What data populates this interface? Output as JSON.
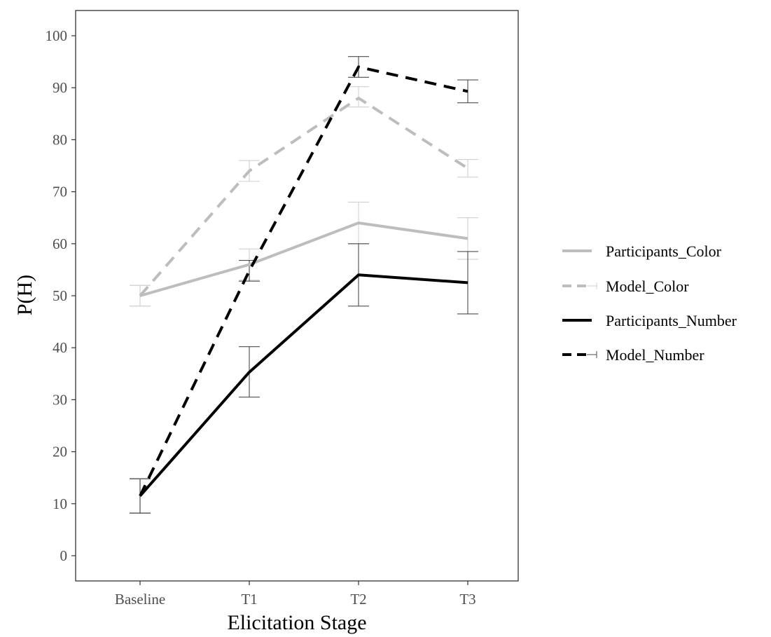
{
  "chart_data": {
    "type": "line",
    "xlabel": "Elicitation Stage",
    "ylabel": "P(H)",
    "categories": [
      "Baseline",
      "T1",
      "T2",
      "T3"
    ],
    "ylim": [
      -5,
      105
    ],
    "yticks": [
      0,
      10,
      20,
      30,
      40,
      50,
      60,
      70,
      80,
      90,
      100
    ],
    "grid": false,
    "legend_position": "right",
    "series": [
      {
        "name": "Participants_Color",
        "values": [
          50,
          56,
          64,
          61
        ],
        "error_low": [
          48,
          53,
          60,
          57
        ],
        "error_high": [
          52,
          59,
          68,
          65
        ],
        "color": "#bdbdbd",
        "dash": "solid"
      },
      {
        "name": "Model_Color",
        "values": [
          50,
          74,
          88,
          74.5
        ],
        "error_low": [
          48,
          72,
          86.3,
          72.8
        ],
        "error_high": [
          52,
          76,
          90.2,
          76.2
        ],
        "color": "#bdbdbd",
        "dash": "dashed"
      },
      {
        "name": "Participants_Number",
        "values": [
          11.5,
          35.3,
          54,
          52.5
        ],
        "error_low": [
          8.2,
          30.5,
          48,
          46.5
        ],
        "error_high": [
          14.8,
          40.2,
          60,
          58.5
        ],
        "color": "#000000",
        "dash": "solid"
      },
      {
        "name": "Model_Number",
        "values": [
          11.5,
          54.8,
          94,
          89.3
        ],
        "error_low": [
          8.2,
          52.8,
          92,
          87.1
        ],
        "error_high": [
          14.8,
          56.8,
          96,
          91.5
        ],
        "color": "#000000",
        "dash": "dashed"
      }
    ]
  }
}
